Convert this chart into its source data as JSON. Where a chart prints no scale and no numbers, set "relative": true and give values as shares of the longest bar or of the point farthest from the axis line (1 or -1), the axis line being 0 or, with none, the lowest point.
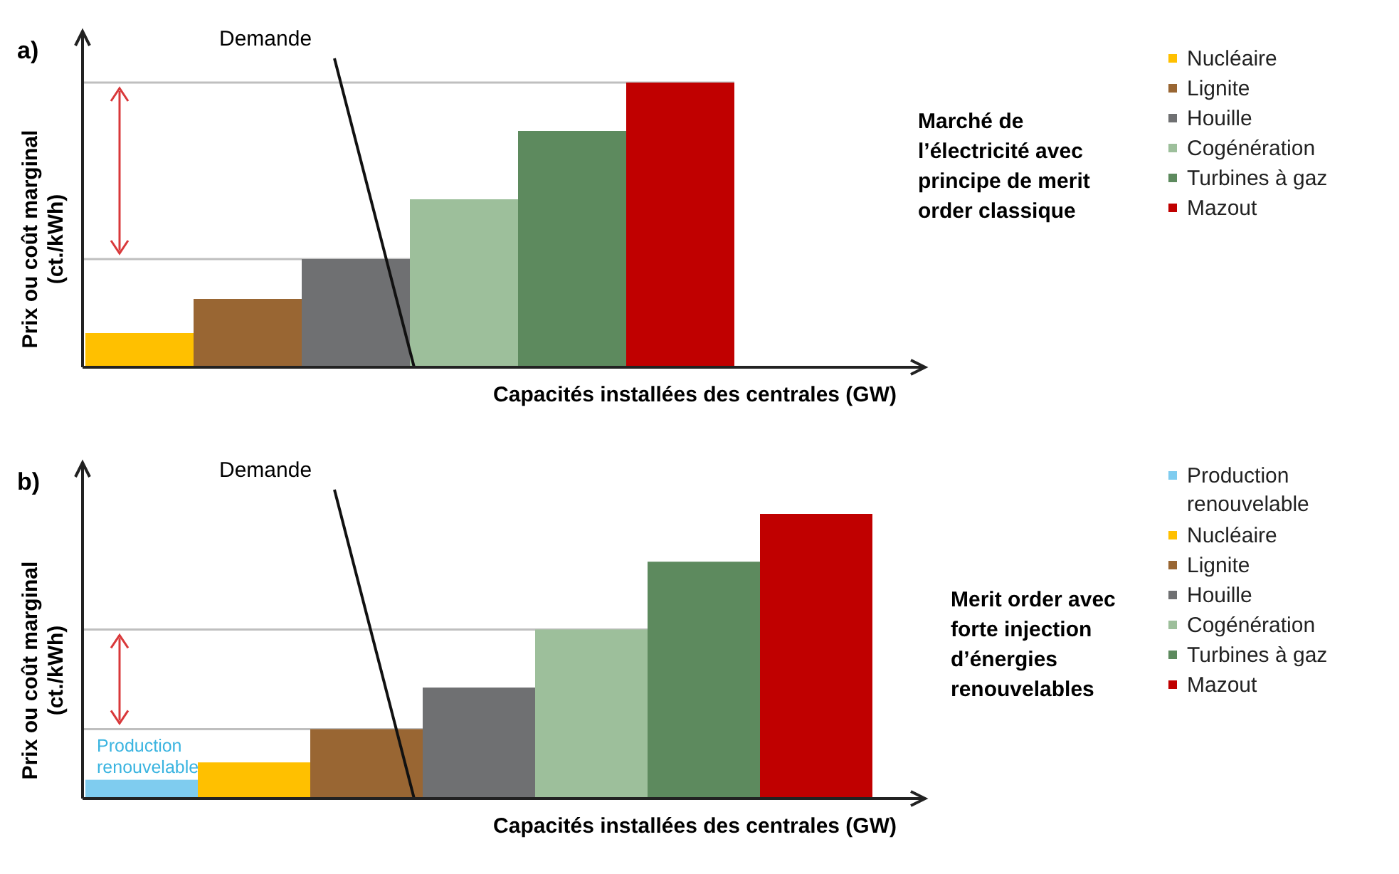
{
  "chart_data": [
    {
      "type": "bar",
      "title": "a)",
      "xlabel": "Capacités installées des centrales (GW)",
      "ylabel": "Prix ou coût marginal (ct./kWh)",
      "relative": true,
      "stacked": true,
      "categories": [
        null,
        null,
        null,
        null,
        null,
        null
      ],
      "legend": "right",
      "annotations": [
        "Demande",
        "Marché de l’électricité avec principe de merit order classique"
      ],
      "ref_lines": [
        {
          "axis": "y",
          "value": 1,
          "color": "#bfbfbf"
        },
        {
          "axis": "y",
          "value": 0.38,
          "color": "#bfbfbf"
        }
      ],
      "series": [
        {
          "name": "Nucléaire",
          "color": "#ffc000",
          "values": [
            0.12,
            null,
            null,
            null,
            null,
            null
          ]
        },
        {
          "name": "Lignite",
          "color": "#996633",
          "values": [
            null,
            0.24,
            null,
            null,
            null,
            null
          ]
        },
        {
          "name": "Houille",
          "color": "#6f7072",
          "values": [
            null,
            null,
            0.38,
            null,
            null,
            null
          ]
        },
        {
          "name": "Cogénération",
          "color": "#9dbf9b",
          "values": [
            null,
            null,
            null,
            0.59,
            null,
            null
          ]
        },
        {
          "name": "Turbines à gaz",
          "color": "#5d8a5e",
          "values": [
            null,
            null,
            null,
            null,
            0.83,
            null
          ]
        },
        {
          "name": "Mazout",
          "color": "#c00000",
          "values": [
            null,
            null,
            null,
            null,
            null,
            1
          ]
        }
      ]
    },
    {
      "type": "bar",
      "title": "b)",
      "xlabel": "Capacités installées des centrales (GW)",
      "ylabel": "Prix ou coût marginal (ct./kWh)",
      "relative": true,
      "stacked": true,
      "categories": [
        null,
        null,
        null,
        null,
        null,
        null,
        null
      ],
      "legend": "right",
      "annotations": [
        "Demande",
        "Merit order avec forte injection d’énergies renouvelables",
        "Production renouvelable"
      ],
      "ref_lines": [
        {
          "axis": "y",
          "value": 0.594,
          "color": "#bfbfbf"
        },
        {
          "axis": "y",
          "value": 0.244,
          "color": "#bfbfbf"
        }
      ],
      "series": [
        {
          "name": "Production renouvelable",
          "color": "#7fccef",
          "values": [
            0.066,
            null,
            null,
            null,
            null,
            null,
            null
          ]
        },
        {
          "name": "Nucléaire",
          "color": "#ffc000",
          "values": [
            null,
            0.127,
            null,
            null,
            null,
            null,
            null
          ]
        },
        {
          "name": "Lignite",
          "color": "#996633",
          "values": [
            null,
            null,
            0.244,
            null,
            null,
            null,
            null
          ]
        },
        {
          "name": "Houille",
          "color": "#6f7072",
          "values": [
            null,
            null,
            null,
            0.39,
            null,
            null,
            null
          ]
        },
        {
          "name": "Cogénération",
          "color": "#9dbf9b",
          "values": [
            null,
            null,
            null,
            null,
            0.594,
            null,
            null
          ]
        },
        {
          "name": "Turbines à gaz",
          "color": "#5d8a5e",
          "values": [
            null,
            null,
            null,
            null,
            null,
            0.832,
            null
          ]
        },
        {
          "name": "Mazout",
          "color": "#c00000",
          "values": [
            null,
            null,
            null,
            null,
            null,
            null,
            1
          ]
        }
      ]
    }
  ]
}
